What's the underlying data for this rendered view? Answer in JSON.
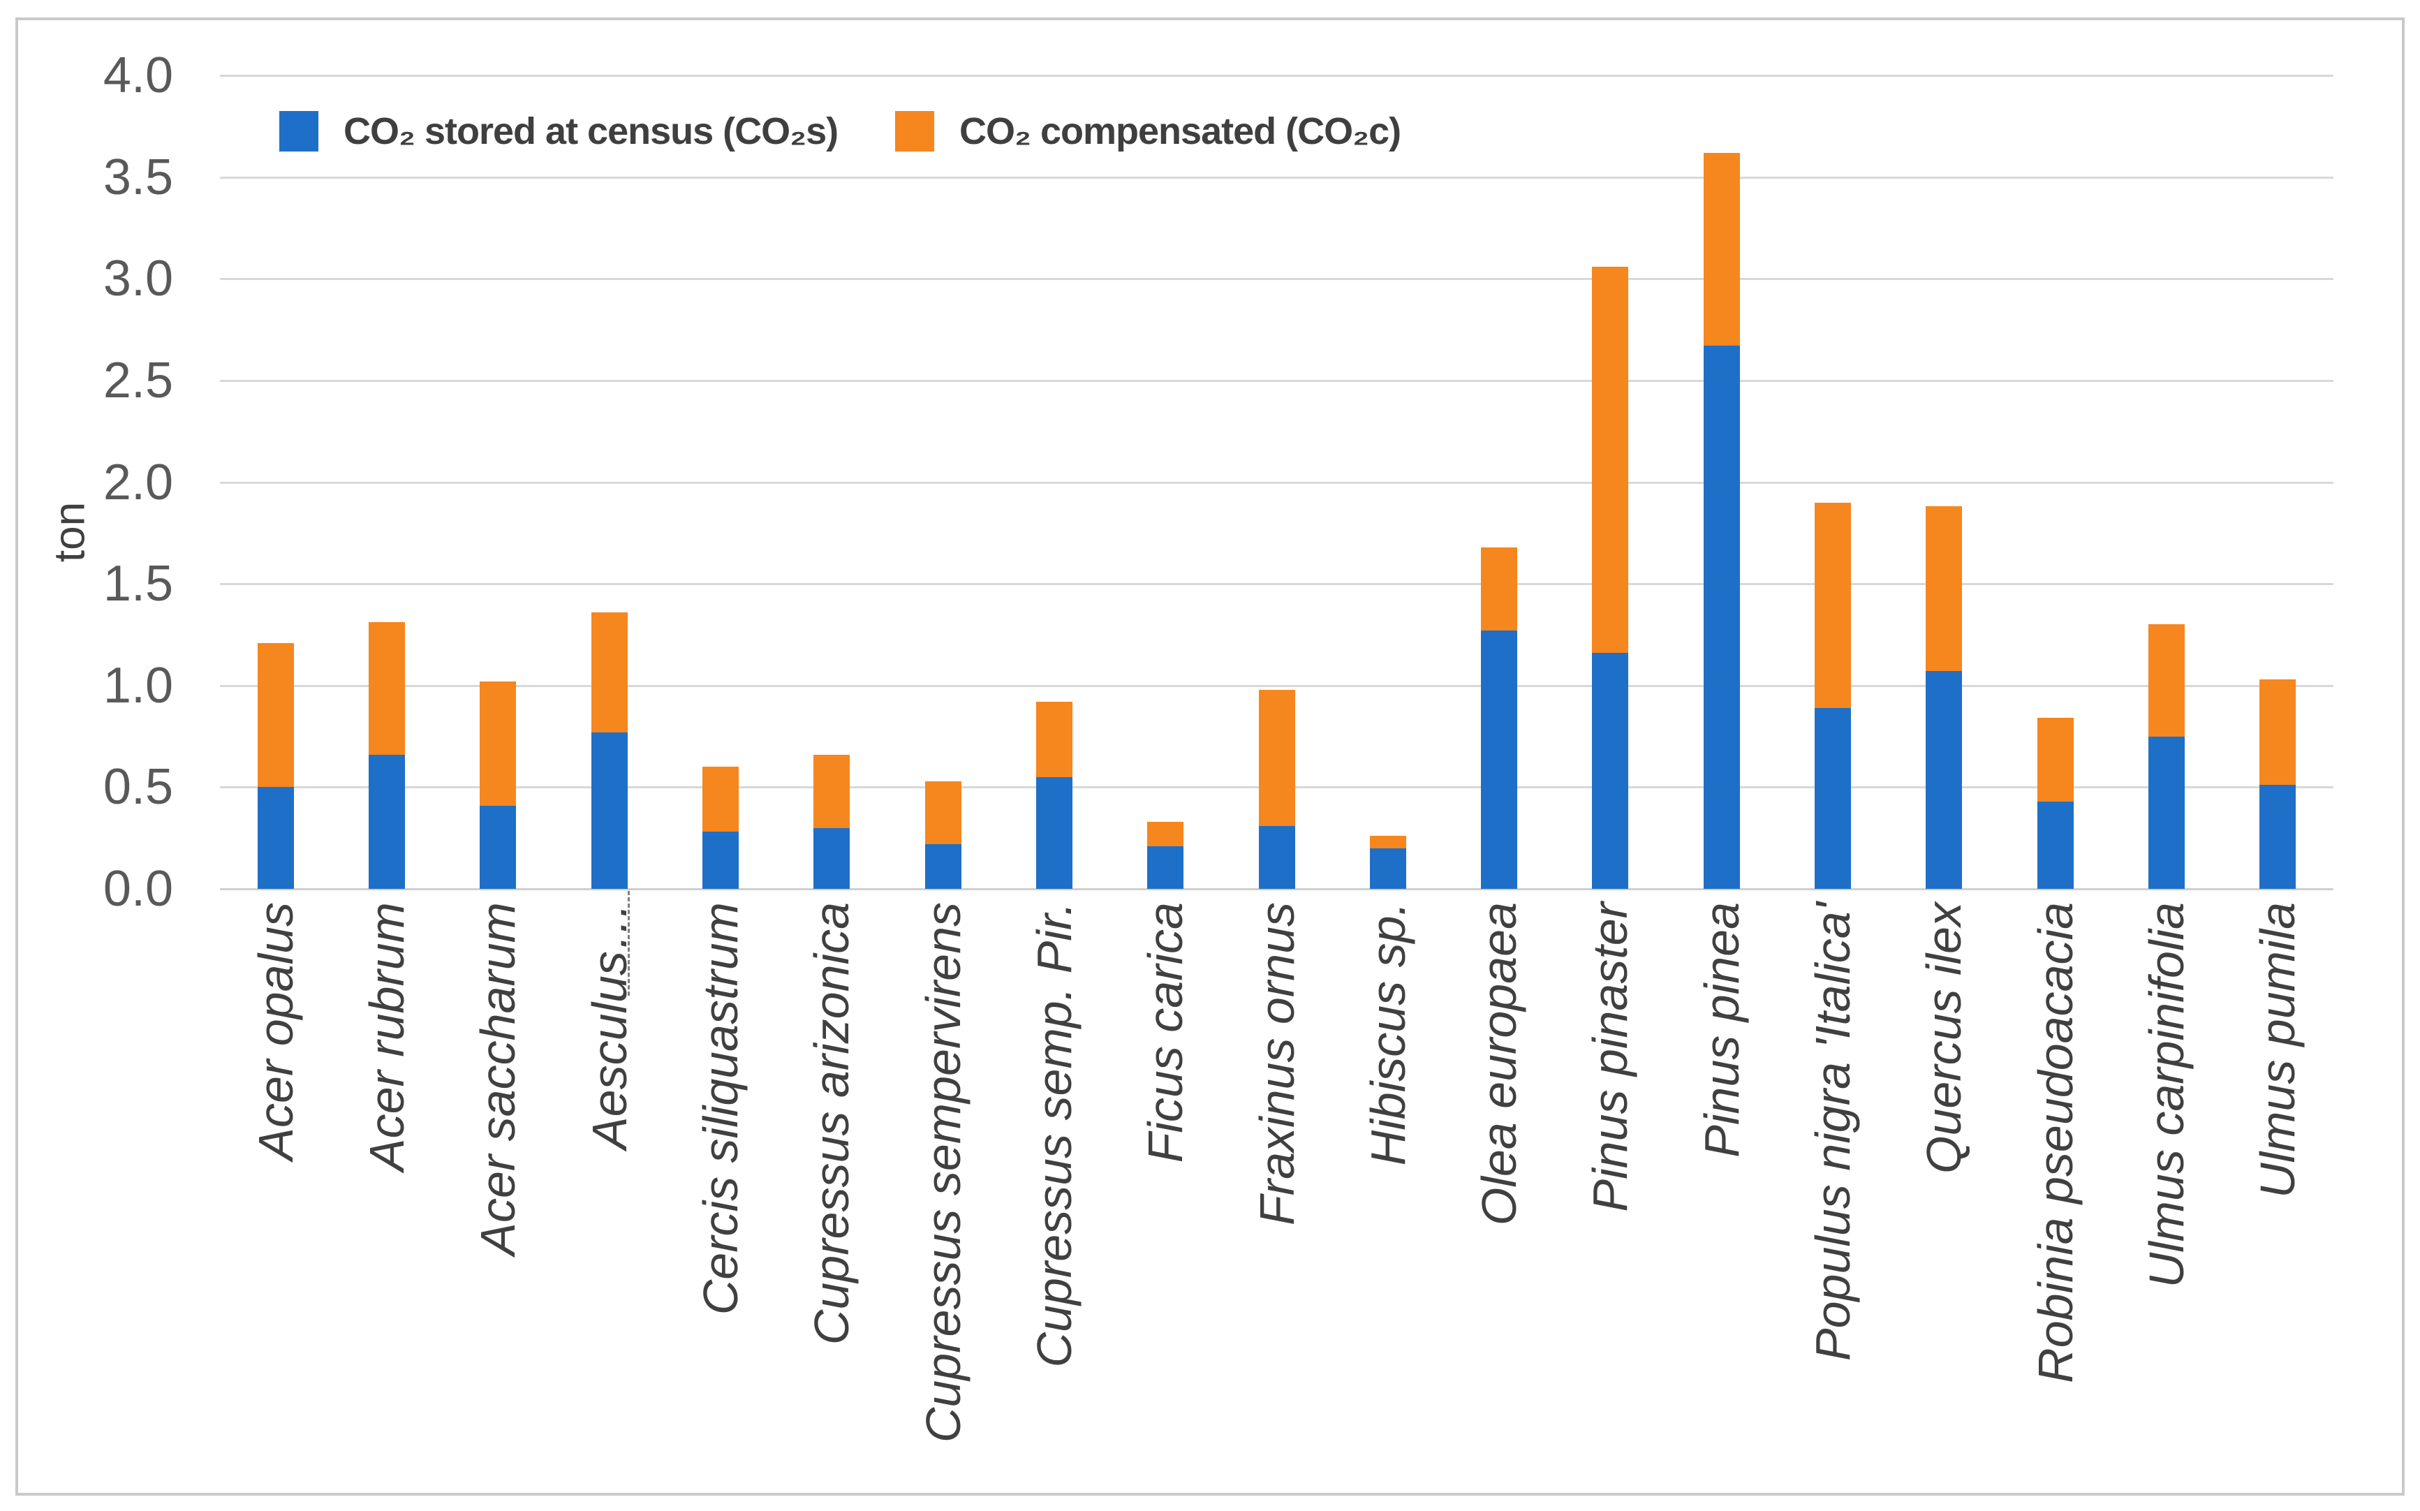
{
  "chart_data": {
    "type": "bar",
    "stacked": true,
    "title": "",
    "ylabel": "ton",
    "ylim": [
      0,
      4.0
    ],
    "ytick_step": 0.5,
    "grid": true,
    "legend_position": "top-left-inside",
    "ytick_labels": [
      "4.0",
      "3.5",
      "3.0",
      "2.5",
      "2.0",
      "1.5",
      "1.0",
      "0.5",
      "0.0"
    ],
    "categories": [
      "Acer opalus",
      "Acer rubrum",
      "Acer saccharum",
      "Aesculus…",
      "Cercis siliquastrum",
      "Cupressus arizonica",
      "Cupressus sempervirens",
      "Cupressus semp. Pir.",
      "Ficus carica",
      "Fraxinus ornus",
      "Hibiscus sp.",
      "Olea europaea",
      "Pinus pinaster",
      "Pinus pinea",
      "Populus nigra 'Italica'",
      "Quercus ilex",
      "Robinia pseudoacacia",
      "Ulmus carpinifolia",
      "Ulmus pumila"
    ],
    "series": [
      {
        "name": "CO₂ stored at census (CO₂s)",
        "color": "#1E6FC8",
        "values": [
          0.5,
          0.66,
          0.41,
          0.77,
          0.28,
          0.3,
          0.22,
          0.55,
          0.21,
          0.31,
          0.2,
          1.27,
          1.16,
          2.67,
          0.89,
          1.07,
          0.43,
          0.75,
          0.51
        ]
      },
      {
        "name": "CO₂ compensated (CO₂c)",
        "color": "#F6861E",
        "values": [
          0.71,
          0.65,
          0.61,
          0.59,
          0.32,
          0.36,
          0.31,
          0.37,
          0.12,
          0.67,
          0.06,
          0.41,
          1.9,
          0.95,
          1.01,
          0.81,
          0.41,
          0.55,
          0.52
        ]
      }
    ],
    "truncated_category": {
      "index": 3,
      "has_leader_line": true
    }
  },
  "colors": {
    "background": "#FFFFFF",
    "border": "#C9C9C9",
    "gridline": "#D8D8D8",
    "axisline": "#CFCFCF",
    "tick_text": "#595959",
    "category_text": "#404040",
    "legend_text": "#3F3F3F",
    "leader_line": "#7F7F7F",
    "series_blue": "#1E6FC8",
    "series_orange": "#F6861E"
  }
}
